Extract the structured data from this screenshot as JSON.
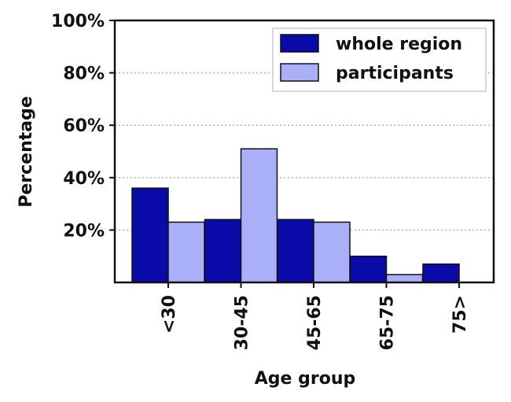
{
  "chart_data": {
    "type": "bar",
    "xlabel": "Age group",
    "ylabel": "Percentage",
    "categories": [
      "<30",
      "30-45",
      "45-65",
      "65-75",
      "75>"
    ],
    "series": [
      {
        "name": "whole region",
        "values": [
          36,
          24,
          24,
          10,
          7
        ],
        "color": "#0a0aa8"
      },
      {
        "name": "participants",
        "values": [
          23,
          51,
          23,
          3,
          0
        ],
        "color": "#aab0f7"
      }
    ],
    "ylim": [
      0,
      100
    ],
    "yticks": [
      20,
      40,
      60,
      80,
      100
    ],
    "ytick_labels": [
      "20%",
      "40%",
      "60%",
      "80%",
      "100%"
    ],
    "grid": "horizontal dotted",
    "legend": "top-right"
  }
}
